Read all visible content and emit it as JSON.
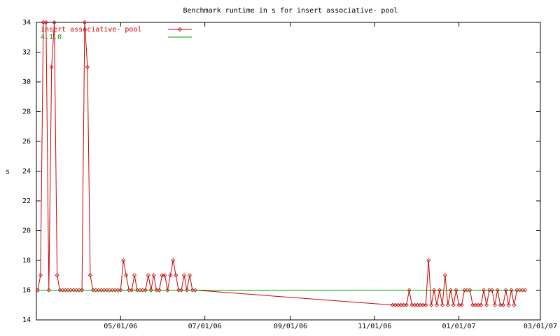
{
  "chart_data": {
    "type": "line",
    "title": "Benchmark runtime in s for insert associative-  pool",
    "y_label": "s",
    "xlim": [
      "2006-03-01",
      "2007-03-01"
    ],
    "xticks": [
      {
        "value": "2006-05-01",
        "label": "05/01/06"
      },
      {
        "value": "2006-07-01",
        "label": "07/01/06"
      },
      {
        "value": "2006-09-01",
        "label": "09/01/06"
      },
      {
        "value": "2006-11-01",
        "label": "11/01/06"
      },
      {
        "value": "2007-01-01",
        "label": "01/01/07"
      },
      {
        "value": "2007-03-01",
        "label": "03/01/07"
      }
    ],
    "ylim": [
      14,
      34
    ],
    "yticks": [
      14,
      16,
      18,
      20,
      22,
      24,
      26,
      28,
      30,
      32,
      34
    ],
    "legend": "top-left",
    "series": [
      {
        "name": "insert associative-  pool",
        "color": "#cc0000",
        "markers": true,
        "x": [
          "2006-03-02",
          "2006-03-04",
          "2006-03-06",
          "2006-03-08",
          "2006-03-10",
          "2006-03-12",
          "2006-03-14",
          "2006-03-16",
          "2006-03-18",
          "2006-03-20",
          "2006-03-22",
          "2006-03-24",
          "2006-03-26",
          "2006-03-28",
          "2006-03-30",
          "2006-04-01",
          "2006-04-03",
          "2006-04-05",
          "2006-04-07",
          "2006-04-09",
          "2006-04-11",
          "2006-04-13",
          "2006-04-15",
          "2006-04-17",
          "2006-04-19",
          "2006-04-21",
          "2006-04-23",
          "2006-04-25",
          "2006-04-27",
          "2006-04-29",
          "2006-05-01",
          "2006-05-03",
          "2006-05-05",
          "2006-05-07",
          "2006-05-09",
          "2006-05-11",
          "2006-05-13",
          "2006-05-15",
          "2006-05-17",
          "2006-05-19",
          "2006-05-21",
          "2006-05-23",
          "2006-05-25",
          "2006-05-27",
          "2006-05-29",
          "2006-05-31",
          "2006-06-02",
          "2006-06-04",
          "2006-06-06",
          "2006-06-08",
          "2006-06-10",
          "2006-06-12",
          "2006-06-14",
          "2006-06-16",
          "2006-06-18",
          "2006-06-20",
          "2006-06-22",
          "2006-06-24",
          "2006-11-14",
          "2006-11-16",
          "2006-11-18",
          "2006-11-20",
          "2006-11-22",
          "2006-11-24",
          "2006-11-26",
          "2006-11-28",
          "2006-11-30",
          "2006-12-02",
          "2006-12-04",
          "2006-12-06",
          "2006-12-08",
          "2006-12-10",
          "2006-12-12",
          "2006-12-14",
          "2006-12-16",
          "2006-12-18",
          "2006-12-20",
          "2006-12-22",
          "2006-12-24",
          "2006-12-26",
          "2006-12-28",
          "2006-12-30",
          "2007-01-01",
          "2007-01-03",
          "2007-01-05",
          "2007-01-07",
          "2007-01-09",
          "2007-01-11",
          "2007-01-13",
          "2007-01-15",
          "2007-01-17",
          "2007-01-19",
          "2007-01-21",
          "2007-01-23",
          "2007-01-25",
          "2007-01-27",
          "2007-01-29",
          "2007-01-31",
          "2007-02-02",
          "2007-02-04",
          "2007-02-06",
          "2007-02-08",
          "2007-02-10",
          "2007-02-12",
          "2007-02-14",
          "2007-02-16",
          "2007-02-18"
        ],
        "values": [
          16,
          17,
          34,
          34,
          16,
          31,
          34,
          17,
          16,
          16,
          16,
          16,
          16,
          16,
          16,
          16,
          16,
          34,
          31,
          17,
          16,
          16,
          16,
          16,
          16,
          16,
          16,
          16,
          16,
          16,
          16,
          18,
          17,
          16,
          16,
          17,
          16,
          16,
          16,
          16,
          17,
          16,
          17,
          16,
          16,
          17,
          17,
          16,
          17,
          18,
          17,
          16,
          16,
          17,
          16,
          17,
          16,
          16,
          15,
          15,
          15,
          15,
          15,
          15,
          16,
          15,
          15,
          15,
          15,
          15,
          15,
          18,
          15,
          16,
          15,
          16,
          15,
          17,
          15,
          16,
          15,
          16,
          15,
          15,
          16,
          16,
          16,
          15,
          15,
          15,
          15,
          16,
          15,
          16,
          16,
          15,
          16,
          15,
          15,
          16,
          15,
          16,
          15,
          16,
          16,
          16,
          16
        ]
      },
      {
        "name": "4.1.0",
        "color": "#00a000",
        "markers": false,
        "x": [
          "2006-03-01",
          "2007-02-18"
        ],
        "values": [
          16,
          16
        ]
      }
    ]
  }
}
